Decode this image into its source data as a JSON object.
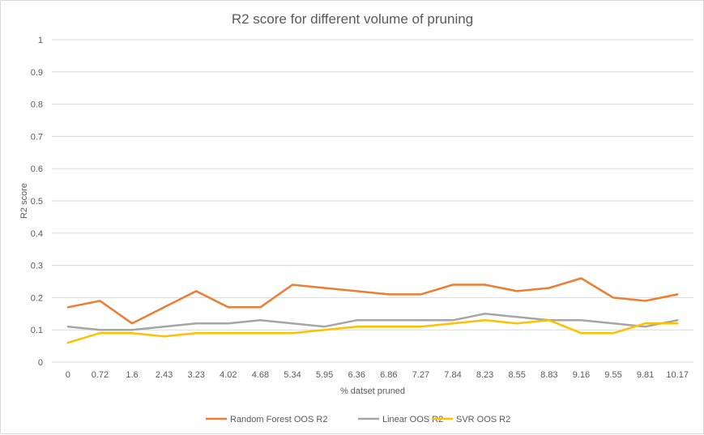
{
  "chart_data": {
    "type": "line",
    "title": "R2 score for different volume of pruning",
    "xlabel": "% datset pruned",
    "ylabel": "R2 score",
    "ylim": [
      0,
      1
    ],
    "yticks": [
      "0",
      "0.1",
      "0.2",
      "0.3",
      "0.4",
      "0.5",
      "0.6",
      "0.7",
      "0.8",
      "0.9",
      "1"
    ],
    "categories": [
      "0",
      "0.72",
      "1.6",
      "2.43",
      "3.23",
      "4.02",
      "4.68",
      "5.34",
      "5.95",
      "6.36",
      "6.86",
      "7.27",
      "7.84",
      "8.23",
      "8.55",
      "8.83",
      "9.16",
      "9.55",
      "9.81",
      "10.17"
    ],
    "grid": "horizontal",
    "legend_position": "bottom",
    "series": [
      {
        "name": "Random Forest OOS R2",
        "color": "#ED7D31",
        "values": [
          0.17,
          0.19,
          0.12,
          0.17,
          0.22,
          0.17,
          0.17,
          0.24,
          0.23,
          0.22,
          0.21,
          0.21,
          0.24,
          0.24,
          0.22,
          0.23,
          0.26,
          0.2,
          0.19,
          0.21
        ]
      },
      {
        "name": "Linear OOS R2",
        "color": "#A5A5A5",
        "values": [
          0.11,
          0.1,
          0.1,
          0.11,
          0.12,
          0.12,
          0.13,
          0.12,
          0.11,
          0.13,
          0.13,
          0.13,
          0.13,
          0.15,
          0.14,
          0.13,
          0.13,
          0.12,
          0.11,
          0.13
        ]
      },
      {
        "name": "SVR OOS R2",
        "color": "#FFC000",
        "values": [
          0.06,
          0.09,
          0.09,
          0.08,
          0.09,
          0.09,
          0.09,
          0.09,
          0.1,
          0.11,
          0.11,
          0.11,
          0.12,
          0.13,
          0.12,
          0.13,
          0.09,
          0.09,
          0.12,
          0.12
        ]
      }
    ]
  }
}
